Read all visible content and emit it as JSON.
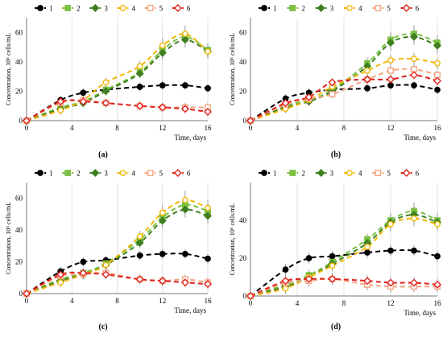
{
  "figure": {
    "x_unit": "Time, days",
    "y_label": "Concentration, 10⁶ cells/mL"
  },
  "chart_data": [
    {
      "type": "scatter",
      "panel_label": "(a)",
      "xlabel": "Time, days",
      "ylabel": "Concentration, 10⁶ cells/mL",
      "xlim": [
        0,
        16
      ],
      "ylim": [
        0,
        70
      ],
      "xticks": [
        0,
        4,
        8,
        12,
        16
      ],
      "yticks": [
        0,
        20,
        40,
        60
      ],
      "legend": "top",
      "series": [
        {
          "name": "1",
          "color": "#000000",
          "marker": "circle",
          "x": [
            0,
            3,
            5,
            7,
            10,
            12,
            14,
            16
          ],
          "y": [
            0,
            14,
            19,
            21,
            23,
            24,
            24,
            22
          ]
        },
        {
          "name": "2",
          "color": "#7ac143",
          "marker": "square",
          "x": [
            0,
            3,
            5,
            7,
            10,
            12,
            14,
            16
          ],
          "y": [
            0,
            9,
            13,
            21,
            33,
            48,
            57,
            48
          ]
        },
        {
          "name": "3",
          "color": "#3e7f1f",
          "marker": "diamond",
          "x": [
            0,
            3,
            5,
            7,
            10,
            12,
            14,
            16
          ],
          "y": [
            0,
            8,
            12,
            20,
            32,
            46,
            55,
            47
          ]
        },
        {
          "name": "4",
          "color": "#f2b705",
          "marker": "open-circle",
          "x": [
            0,
            3,
            5,
            7,
            10,
            12,
            14,
            16
          ],
          "y": [
            0,
            7,
            14,
            26,
            37,
            51,
            59,
            47
          ]
        },
        {
          "name": "5",
          "color": "#f4a582",
          "marker": "open-square",
          "x": [
            0,
            3,
            5,
            7,
            10,
            12,
            14,
            16
          ],
          "y": [
            0,
            12,
            14,
            12,
            10,
            9,
            9,
            9
          ]
        },
        {
          "name": "6",
          "color": "#e0211c",
          "marker": "open-diamond",
          "x": [
            0,
            3,
            5,
            7,
            10,
            12,
            14,
            16
          ],
          "y": [
            0,
            13,
            13,
            12,
            10,
            9,
            8,
            6
          ]
        }
      ]
    },
    {
      "type": "scatter",
      "panel_label": "(b)",
      "xlabel": "Time, days",
      "ylabel": "Concentration, 10⁶ cells/mL",
      "xlim": [
        0,
        16
      ],
      "ylim": [
        0,
        70
      ],
      "xticks": [
        0,
        4,
        8,
        12,
        16
      ],
      "yticks": [
        0,
        20,
        40,
        60
      ],
      "legend": "top",
      "series": [
        {
          "name": "1",
          "color": "#000000",
          "marker": "circle",
          "x": [
            0,
            3,
            5,
            7,
            10,
            12,
            14,
            16
          ],
          "y": [
            0,
            15,
            19,
            21,
            22,
            24,
            24,
            21
          ]
        },
        {
          "name": "2",
          "color": "#7ac143",
          "marker": "square",
          "x": [
            0,
            3,
            5,
            7,
            10,
            12,
            14,
            16
          ],
          "y": [
            0,
            10,
            14,
            21,
            39,
            55,
            59,
            53
          ]
        },
        {
          "name": "3",
          "color": "#3e7f1f",
          "marker": "diamond",
          "x": [
            0,
            3,
            5,
            7,
            10,
            12,
            14,
            16
          ],
          "y": [
            0,
            9,
            13,
            20,
            37,
            53,
            57,
            51
          ]
        },
        {
          "name": "4",
          "color": "#f2b705",
          "marker": "open-circle",
          "x": [
            0,
            3,
            5,
            7,
            10,
            12,
            14,
            16
          ],
          "y": [
            0,
            8,
            14,
            23,
            34,
            41,
            42,
            39
          ]
        },
        {
          "name": "5",
          "color": "#f4a582",
          "marker": "open-square",
          "x": [
            0,
            3,
            5,
            7,
            10,
            12,
            14,
            16
          ],
          "y": [
            0,
            11,
            15,
            18,
            28,
            34,
            35,
            31
          ]
        },
        {
          "name": "6",
          "color": "#e0211c",
          "marker": "open-diamond",
          "x": [
            0,
            3,
            5,
            7,
            10,
            12,
            14,
            16
          ],
          "y": [
            0,
            12,
            16,
            26,
            28,
            28,
            31,
            27
          ]
        }
      ]
    },
    {
      "type": "scatter",
      "panel_label": "(c)",
      "xlabel": "Time, days",
      "ylabel": "Concentration, 10⁶ cells/mL",
      "xlim": [
        0,
        16
      ],
      "ylim": [
        0,
        70
      ],
      "xticks": [
        0,
        4,
        8,
        12,
        16
      ],
      "yticks": [
        0,
        20,
        40,
        60
      ],
      "legend": "top",
      "series": [
        {
          "name": "1",
          "color": "#000000",
          "marker": "circle",
          "x": [
            0,
            3,
            5,
            7,
            10,
            12,
            14,
            16
          ],
          "y": [
            0,
            14,
            20,
            21,
            24,
            25,
            25,
            22
          ]
        },
        {
          "name": "2",
          "color": "#7ac143",
          "marker": "square",
          "x": [
            0,
            3,
            5,
            7,
            10,
            12,
            14,
            16
          ],
          "y": [
            0,
            9,
            13,
            19,
            34,
            48,
            56,
            52
          ]
        },
        {
          "name": "3",
          "color": "#3e7f1f",
          "marker": "diamond",
          "x": [
            0,
            3,
            5,
            7,
            10,
            12,
            14,
            16
          ],
          "y": [
            0,
            8,
            12,
            18,
            32,
            46,
            53,
            49
          ]
        },
        {
          "name": "4",
          "color": "#f2b705",
          "marker": "open-circle",
          "x": [
            0,
            3,
            5,
            7,
            10,
            12,
            14,
            16
          ],
          "y": [
            0,
            7,
            12,
            18,
            36,
            51,
            59,
            54
          ]
        },
        {
          "name": "5",
          "color": "#f4a582",
          "marker": "open-square",
          "x": [
            0,
            3,
            5,
            7,
            10,
            12,
            14,
            16
          ],
          "y": [
            0,
            11,
            12,
            13,
            9,
            8,
            9,
            7
          ]
        },
        {
          "name": "6",
          "color": "#e0211c",
          "marker": "open-diamond",
          "x": [
            0,
            3,
            5,
            7,
            10,
            12,
            14,
            16
          ],
          "y": [
            0,
            12,
            13,
            12,
            9,
            8,
            7,
            6
          ]
        }
      ]
    },
    {
      "type": "scatter",
      "panel_label": "(d)",
      "xlabel": "Time, days",
      "ylabel": "Concentration, 10⁶ cells/mL",
      "xlim": [
        0,
        16
      ],
      "ylim": [
        0,
        60
      ],
      "xticks": [
        0,
        4,
        8,
        12,
        16
      ],
      "yticks": [
        0,
        20,
        40
      ],
      "legend": "top",
      "series": [
        {
          "name": "1",
          "color": "#000000",
          "marker": "circle",
          "x": [
            0,
            3,
            5,
            7,
            10,
            12,
            14,
            16
          ],
          "y": [
            0,
            14,
            20,
            21,
            23,
            24,
            24,
            21
          ]
        },
        {
          "name": "2",
          "color": "#7ac143",
          "marker": "square",
          "x": [
            0,
            3,
            5,
            7,
            10,
            12,
            14,
            16
          ],
          "y": [
            0,
            6,
            11,
            18,
            30,
            40,
            45,
            40
          ]
        },
        {
          "name": "3",
          "color": "#3e7f1f",
          "marker": "diamond",
          "x": [
            0,
            3,
            5,
            7,
            10,
            12,
            14,
            16
          ],
          "y": [
            0,
            5,
            10,
            17,
            28,
            39,
            43,
            39
          ]
        },
        {
          "name": "4",
          "color": "#f2b705",
          "marker": "open-circle",
          "x": [
            0,
            3,
            5,
            7,
            10,
            12,
            14,
            16
          ],
          "y": [
            0,
            4,
            10,
            16,
            26,
            38,
            41,
            38
          ]
        },
        {
          "name": "5",
          "color": "#f4a582",
          "marker": "open-square",
          "x": [
            0,
            3,
            5,
            7,
            10,
            12,
            14,
            16
          ],
          "y": [
            0,
            7,
            8,
            9,
            6,
            5,
            5,
            5
          ]
        },
        {
          "name": "6",
          "color": "#e0211c",
          "marker": "open-diamond",
          "x": [
            0,
            3,
            5,
            7,
            10,
            12,
            14,
            16
          ],
          "y": [
            0,
            8,
            9,
            9,
            8,
            7,
            7,
            6
          ]
        }
      ]
    }
  ]
}
